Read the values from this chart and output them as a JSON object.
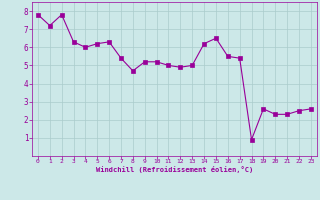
{
  "x": [
    0,
    1,
    2,
    3,
    4,
    5,
    6,
    7,
    8,
    9,
    10,
    11,
    12,
    13,
    14,
    15,
    16,
    17,
    18,
    19,
    20,
    21,
    22,
    23
  ],
  "y": [
    7.8,
    7.2,
    7.8,
    6.3,
    6.0,
    6.2,
    6.3,
    5.4,
    4.7,
    5.2,
    5.2,
    5.0,
    4.9,
    5.0,
    6.2,
    6.5,
    5.5,
    5.4,
    0.9,
    2.6,
    2.3,
    2.3,
    2.5,
    2.6
  ],
  "line_color": "#990099",
  "marker_color": "#990099",
  "bg_color": "#cce8e8",
  "grid_color": "#aacccc",
  "xlabel": "Windchill (Refroidissement éolien,°C)",
  "xlim": [
    -0.5,
    23.5
  ],
  "ylim": [
    0,
    8.5
  ],
  "yticks": [
    1,
    2,
    3,
    4,
    5,
    6,
    7,
    8
  ],
  "xticks": [
    0,
    1,
    2,
    3,
    4,
    5,
    6,
    7,
    8,
    9,
    10,
    11,
    12,
    13,
    14,
    15,
    16,
    17,
    18,
    19,
    20,
    21,
    22,
    23
  ],
  "font_color": "#990099",
  "linewidth": 0.8,
  "markersize": 2.5
}
